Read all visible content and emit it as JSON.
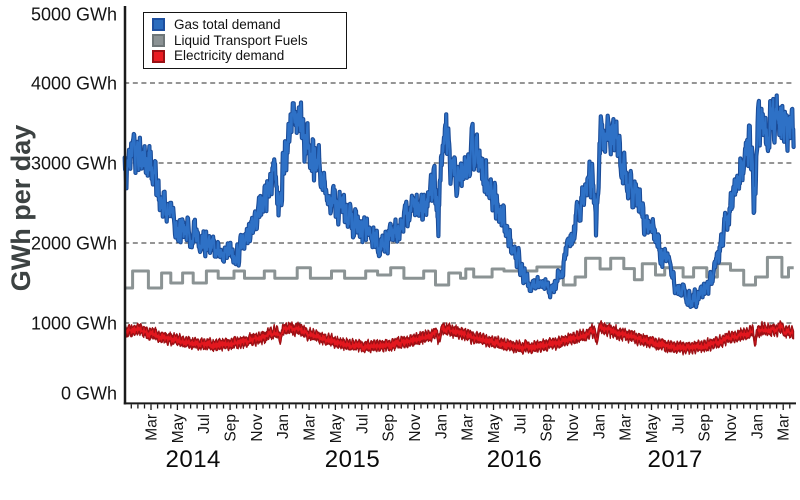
{
  "chart_data": {
    "type": "line",
    "title": "",
    "ylabel": "GWh per day",
    "ylim": [
      0,
      5000
    ],
    "y_ticks": [
      {
        "value": 5000,
        "label": "5000 GWh"
      },
      {
        "value": 4000,
        "label": "4000 GWh"
      },
      {
        "value": 3000,
        "label": "3000 GWh"
      },
      {
        "value": 2000,
        "label": "2000 GWh"
      },
      {
        "value": 1000,
        "label": "1000 GWh"
      },
      {
        "value": 0,
        "label": "0 GWh"
      }
    ],
    "grid_values": [
      4000,
      3000,
      2000,
      1000
    ],
    "grid_color": "#2b2b2b",
    "axis_color": "#1a1a1a",
    "x_axis": {
      "start": "2014-01",
      "end": "2018-03",
      "minor_tick_step_months": 0.5,
      "first_label_month_offset": 2,
      "label_month_step": 2,
      "month_labels": [
        "Mar",
        "May",
        "Jul",
        "Sep",
        "Nov",
        "Jan",
        "Mar",
        "May",
        "Jul",
        "Sep",
        "Nov",
        "Jan",
        "Mar",
        "May",
        "Jul",
        "Sep",
        "Nov",
        "Jan",
        "Mar",
        "May",
        "Jul",
        "Sep",
        "Nov",
        "Jan",
        "Mar"
      ],
      "years": [
        {
          "label": "2014",
          "month_offset": 5.2
        },
        {
          "label": "2015",
          "month_offset": 17.3
        },
        {
          "label": "2016",
          "month_offset": 29.6
        },
        {
          "label": "2017",
          "month_offset": 41.8
        }
      ]
    },
    "series": [
      {
        "name": "Gas total demand",
        "kind": "noisy-line",
        "color": "#2e71c6",
        "edge_color": "#1b4c98",
        "seed": 17,
        "persistence": 0.58,
        "noise_base": 75,
        "noise_scale": 0.085,
        "weekly_amp": 45,
        "min_value": 1080,
        "holiday_dips": {
          "months": [
            11.8,
            23.8,
            35.8,
            47.8
          ],
          "depth": 800,
          "halfwidth": 0.25
        },
        "anchors": [
          [
            0,
            2950
          ],
          [
            0.4,
            3100
          ],
          [
            0.8,
            3250
          ],
          [
            1.2,
            3150
          ],
          [
            1.6,
            3000
          ],
          [
            2,
            2950
          ],
          [
            2.5,
            2700
          ],
          [
            3,
            2450
          ],
          [
            3.5,
            2350
          ],
          [
            4,
            2250
          ],
          [
            4.5,
            2200
          ],
          [
            5,
            2150
          ],
          [
            5.5,
            2100
          ],
          [
            6,
            2050
          ],
          [
            6.5,
            1980
          ],
          [
            7,
            1950
          ],
          [
            7.6,
            1870
          ],
          [
            8,
            1900
          ],
          [
            8.4,
            1820
          ],
          [
            9,
            2000
          ],
          [
            9.5,
            2100
          ],
          [
            10,
            2300
          ],
          [
            10.5,
            2400
          ],
          [
            11,
            2600
          ],
          [
            11.5,
            2900
          ],
          [
            12,
            3100
          ],
          [
            12.5,
            3300
          ],
          [
            12.9,
            3600
          ],
          [
            13.2,
            3500
          ],
          [
            13.6,
            3300
          ],
          [
            14,
            3150
          ],
          [
            14.5,
            2950
          ],
          [
            15,
            2700
          ],
          [
            15.5,
            2550
          ],
          [
            16,
            2450
          ],
          [
            16.5,
            2380
          ],
          [
            17,
            2300
          ],
          [
            17.5,
            2250
          ],
          [
            18,
            2150
          ],
          [
            18.5,
            2100
          ],
          [
            19,
            2050
          ],
          [
            19.5,
            1980
          ],
          [
            20,
            2060
          ],
          [
            20.5,
            2150
          ],
          [
            21,
            2250
          ],
          [
            21.5,
            2300
          ],
          [
            22,
            2400
          ],
          [
            22.5,
            2350
          ],
          [
            23,
            2600
          ],
          [
            23.5,
            2800
          ],
          [
            24,
            3150
          ],
          [
            24.4,
            3400
          ],
          [
            24.8,
            3000
          ],
          [
            25.2,
            2850
          ],
          [
            25.8,
            3000
          ],
          [
            26.3,
            3200
          ],
          [
            26.8,
            3050
          ],
          [
            27.3,
            2900
          ],
          [
            27.8,
            2750
          ],
          [
            28.3,
            2500
          ],
          [
            28.8,
            2250
          ],
          [
            29.3,
            2000
          ],
          [
            29.8,
            1800
          ],
          [
            30.3,
            1600
          ],
          [
            30.8,
            1480
          ],
          [
            31.3,
            1520
          ],
          [
            31.8,
            1480
          ],
          [
            32.3,
            1420
          ],
          [
            32.8,
            1550
          ],
          [
            33.3,
            1750
          ],
          [
            33.8,
            2000
          ],
          [
            34.3,
            2300
          ],
          [
            34.8,
            2550
          ],
          [
            35.3,
            2850
          ],
          [
            35.8,
            3000
          ],
          [
            36.2,
            3300
          ],
          [
            36.6,
            3350
          ],
          [
            37,
            3300
          ],
          [
            37.5,
            3150
          ],
          [
            38,
            2900
          ],
          [
            38.5,
            2650
          ],
          [
            39,
            2450
          ],
          [
            39.5,
            2300
          ],
          [
            40,
            2150
          ],
          [
            40.5,
            2000
          ],
          [
            41,
            1800
          ],
          [
            41.5,
            1650
          ],
          [
            42,
            1450
          ],
          [
            42.6,
            1330
          ],
          [
            43.2,
            1280
          ],
          [
            43.8,
            1380
          ],
          [
            44.4,
            1500
          ],
          [
            45,
            1800
          ],
          [
            45.6,
            2200
          ],
          [
            46,
            2500
          ],
          [
            46.5,
            2900
          ],
          [
            47,
            3100
          ],
          [
            47.5,
            3250
          ],
          [
            48,
            3300
          ],
          [
            48.5,
            3400
          ],
          [
            49,
            3450
          ],
          [
            49.5,
            3550
          ],
          [
            49.9,
            3500
          ],
          [
            50.3,
            3400
          ],
          [
            50.8,
            3250
          ]
        ]
      },
      {
        "name": "Liquid Transport Fuels",
        "kind": "step",
        "color": "#8b9394",
        "stroke_width": 3,
        "end_month": 50.8,
        "steps": [
          [
            0,
            1437
          ],
          [
            0.6,
            1650
          ],
          [
            1.8,
            1437
          ],
          [
            2.8,
            1625
          ],
          [
            3.5,
            1500
          ],
          [
            4.4,
            1625
          ],
          [
            5.2,
            1500
          ],
          [
            6.2,
            1650
          ],
          [
            7.1,
            1560
          ],
          [
            8.3,
            1650
          ],
          [
            9.1,
            1560
          ],
          [
            10.6,
            1650
          ],
          [
            11.4,
            1560
          ],
          [
            13.1,
            1690
          ],
          [
            14.1,
            1560
          ],
          [
            15.7,
            1650
          ],
          [
            16.7,
            1560
          ],
          [
            18.3,
            1650
          ],
          [
            19.2,
            1600
          ],
          [
            20.2,
            1690
          ],
          [
            21.2,
            1560
          ],
          [
            22.7,
            1650
          ],
          [
            23.6,
            1475
          ],
          [
            24.6,
            1625
          ],
          [
            25.5,
            1560
          ],
          [
            25.9,
            1675
          ],
          [
            26.5,
            1575
          ],
          [
            27.9,
            1675
          ],
          [
            28.8,
            1650
          ],
          [
            31.3,
            1700
          ],
          [
            33.3,
            1475
          ],
          [
            34.2,
            1575
          ],
          [
            35,
            1810
          ],
          [
            36.1,
            1675
          ],
          [
            36.9,
            1810
          ],
          [
            37.9,
            1680
          ],
          [
            38.7,
            1540
          ],
          [
            39.3,
            1740
          ],
          [
            40.3,
            1600
          ],
          [
            41,
            1690
          ],
          [
            42.4,
            1575
          ],
          [
            43.2,
            1690
          ],
          [
            44.2,
            1575
          ],
          [
            45,
            1740
          ],
          [
            46,
            1660
          ],
          [
            47,
            1475
          ],
          [
            47.9,
            1575
          ],
          [
            48.8,
            1820
          ],
          [
            49.9,
            1575
          ],
          [
            50.4,
            1690
          ]
        ]
      },
      {
        "name": "Electricity demand",
        "kind": "noisy-band",
        "color": "#e2171e",
        "edge_color": "#9d1015",
        "seed": 9,
        "persistence": 0.45,
        "center_noise": 20,
        "halfwidth": 45,
        "halfwidth_noise": 13,
        "weekly_amp": 14,
        "holiday_dips": {
          "months": [
            11.85,
            23.85,
            35.85,
            47.85
          ],
          "depth": 135,
          "halfwidth": 0.2
        },
        "anchors": [
          [
            0,
            900
          ],
          [
            0.7,
            905
          ],
          [
            1.4,
            890
          ],
          [
            2,
            865
          ],
          [
            3,
            820
          ],
          [
            4,
            780
          ],
          [
            5,
            750
          ],
          [
            6,
            730
          ],
          [
            7,
            722
          ],
          [
            8,
            738
          ],
          [
            9,
            765
          ],
          [
            10,
            800
          ],
          [
            11,
            850
          ],
          [
            11.8,
            920
          ],
          [
            12.4,
            950
          ],
          [
            13,
            930
          ],
          [
            13.6,
            890
          ],
          [
            14.2,
            855
          ],
          [
            15,
            805
          ],
          [
            16,
            762
          ],
          [
            17,
            730
          ],
          [
            18,
            708
          ],
          [
            19,
            712
          ],
          [
            20,
            722
          ],
          [
            21,
            748
          ],
          [
            22,
            790
          ],
          [
            23,
            845
          ],
          [
            23.8,
            905
          ],
          [
            24.4,
            930
          ],
          [
            25,
            895
          ],
          [
            26,
            852
          ],
          [
            27,
            808
          ],
          [
            28,
            762
          ],
          [
            29,
            728
          ],
          [
            30,
            702
          ],
          [
            31,
            706
          ],
          [
            32,
            718
          ],
          [
            33,
            755
          ],
          [
            34,
            808
          ],
          [
            35,
            855
          ],
          [
            35.8,
            905
          ],
          [
            36.4,
            930
          ],
          [
            37,
            905
          ],
          [
            38,
            852
          ],
          [
            39,
            798
          ],
          [
            40,
            755
          ],
          [
            41,
            715
          ],
          [
            42,
            692
          ],
          [
            43,
            695
          ],
          [
            44,
            708
          ],
          [
            45,
            762
          ],
          [
            46,
            820
          ],
          [
            47,
            862
          ],
          [
            47.8,
            900
          ],
          [
            48.4,
            925
          ],
          [
            49,
            905
          ],
          [
            49.6,
            930
          ],
          [
            50.2,
            905
          ],
          [
            50.8,
            880
          ]
        ]
      }
    ],
    "legend": {
      "items": [
        {
          "label": "Gas total demand",
          "fill": "#2b6cbe",
          "border": "#1d4f9f"
        },
        {
          "label": "Liquid Transport Fuels",
          "fill": "#8b9294",
          "border": "#6e7678"
        },
        {
          "label": "Electricity demand",
          "fill": "#ea1c22",
          "border": "#991014"
        }
      ]
    }
  }
}
